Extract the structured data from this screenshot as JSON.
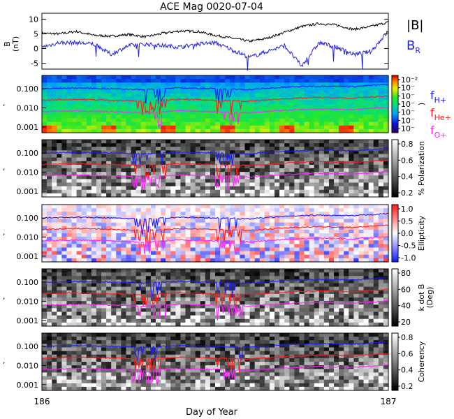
{
  "chart_data": {
    "title": "ACE Mag 0020-07-04",
    "xlabel": "Day of Year",
    "x_range": [
      186,
      187
    ],
    "x_ticks": [
      "186",
      "187"
    ],
    "panels": [
      {
        "type": "line",
        "ylabel": "B",
        "yunit": "(nT)",
        "ylim": [
          -7,
          12
        ],
        "yticks": [
          -5,
          0,
          5,
          10
        ],
        "legend": [
          "|B|",
          "BR"
        ],
        "legend_colors": [
          "#000000",
          "#2222dd"
        ],
        "series": [
          {
            "name": "|B|",
            "color": "#000000",
            "x": [
              186.0,
              186.05,
              186.1,
              186.15,
              186.2,
              186.25,
              186.3,
              186.35,
              186.4,
              186.45,
              186.5,
              186.55,
              186.6,
              186.65,
              186.7,
              186.75,
              186.8,
              186.85,
              186.9,
              186.95,
              187.0
            ],
            "values": [
              5.2,
              5.0,
              5.8,
              4.5,
              4.2,
              4.8,
              4.0,
              5.2,
              6.0,
              5.8,
              4.5,
              3.5,
              2.5,
              3.5,
              5.5,
              7.5,
              8.5,
              8.0,
              6.5,
              7.5,
              9.0
            ]
          },
          {
            "name": "BR",
            "color": "#2222dd",
            "x": [
              186.0,
              186.05,
              186.1,
              186.15,
              186.2,
              186.25,
              186.3,
              186.35,
              186.4,
              186.45,
              186.5,
              186.55,
              186.6,
              186.65,
              186.7,
              186.75,
              186.8,
              186.85,
              186.9,
              186.95,
              187.0
            ],
            "values": [
              0.5,
              2.0,
              2.0,
              1.5,
              -2.0,
              1.0,
              1.5,
              1.0,
              0.5,
              1.5,
              2.0,
              -0.5,
              -3.0,
              -1.0,
              1.0,
              -6.0,
              2.0,
              0.5,
              -2.0,
              -1.0,
              6.0
            ]
          }
        ]
      },
      {
        "type": "heatmap",
        "colormap": "rainbow",
        "ylim_log": [
          0.0005,
          0.5
        ],
        "yticks": [
          "0.001",
          "0.010",
          "0.100"
        ],
        "colorbar_ticks": [
          "10⁻²",
          "10⁻",
          "10⁻",
          "10⁻",
          "10⁻",
          "10⁻",
          "10⁻"
        ],
        "colorbar_label": ")"
      },
      {
        "type": "heatmap",
        "colormap": "gray",
        "ylim_log": [
          0.0005,
          0.5
        ],
        "yticks": [
          "0.001",
          "0.010",
          "0.100"
        ],
        "colorbar_ticks": [
          "0.8",
          "0.6",
          "0.4",
          "0.2"
        ],
        "colorbar_label": "% Polarization"
      },
      {
        "type": "heatmap",
        "colormap": "bwr",
        "ylim_log": [
          0.0005,
          0.5
        ],
        "yticks": [
          "0.001",
          "0.010",
          "0.100"
        ],
        "colorbar_ticks": [
          "1.0",
          "0.5",
          "0.0",
          "-0.5",
          "-1.0"
        ],
        "colorbar_label": "Ellipticity"
      },
      {
        "type": "heatmap",
        "colormap": "gray",
        "ylim_log": [
          0.0005,
          0.5
        ],
        "yticks": [
          "0.001",
          "0.010",
          "0.100"
        ],
        "colorbar_ticks": [
          "80",
          "60",
          "40",
          "20"
        ],
        "colorbar_label": "k dot B",
        "colorbar_label2": "(Deg)"
      },
      {
        "type": "heatmap",
        "colormap": "gray",
        "ylim_log": [
          0.0005,
          0.5
        ],
        "yticks": [
          "0.001",
          "0.010",
          "0.100"
        ],
        "colorbar_ticks": [
          "0.8",
          "0.6",
          "0.4",
          "0.2"
        ],
        "colorbar_label": "Coherency"
      }
    ],
    "gyrofrequency_lines": [
      {
        "name": "fH+",
        "color": "#1a1aff",
        "x": [
          186.0,
          186.1,
          186.2,
          186.3,
          186.4,
          186.5,
          186.6,
          186.7,
          186.8,
          186.9,
          187.0
        ],
        "values": [
          0.1,
          0.11,
          0.1,
          0.09,
          0.11,
          0.1,
          0.09,
          0.12,
          0.14,
          0.13,
          0.17
        ]
      },
      {
        "name": "fHe+",
        "color": "#ff1a1a",
        "x": [
          186.0,
          186.1,
          186.2,
          186.3,
          186.4,
          186.5,
          186.6,
          186.7,
          186.8,
          186.9,
          187.0
        ],
        "values": [
          0.025,
          0.028,
          0.025,
          0.022,
          0.028,
          0.025,
          0.022,
          0.03,
          0.035,
          0.032,
          0.042
        ]
      },
      {
        "name": "fO+",
        "color": "#ff22ff",
        "x": [
          186.0,
          186.1,
          186.2,
          186.3,
          186.4,
          186.5,
          186.6,
          186.7,
          186.8,
          186.9,
          187.0
        ],
        "values": [
          0.0063,
          0.007,
          0.0063,
          0.0055,
          0.007,
          0.0063,
          0.0055,
          0.0075,
          0.0088,
          0.008,
          0.0105
        ]
      }
    ]
  }
}
